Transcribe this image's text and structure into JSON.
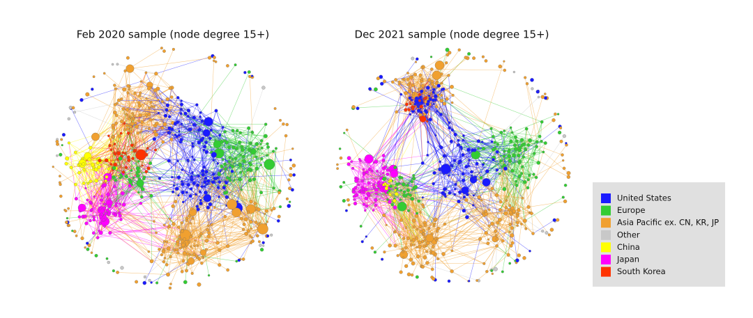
{
  "graphs": [
    {
      "title": "Feb 2020 sample (node degree 15+)"
    },
    {
      "title": "Dec 2021 sample (node degree 15+)"
    }
  ],
  "legend": {
    "items": [
      {
        "label": "United States",
        "color": "#1a1aff"
      },
      {
        "label": "Europe",
        "color": "#33cc33"
      },
      {
        "label": "Asia Pacific ex. CN, KR, JP",
        "color": "#f0a030"
      },
      {
        "label": "Other",
        "color": "#c8c8c8"
      },
      {
        "label": "China",
        "color": "#ffff00"
      },
      {
        "label": "Japan",
        "color": "#ff00ff"
      },
      {
        "label": "South Korea",
        "color": "#ff3300"
      }
    ]
  }
}
